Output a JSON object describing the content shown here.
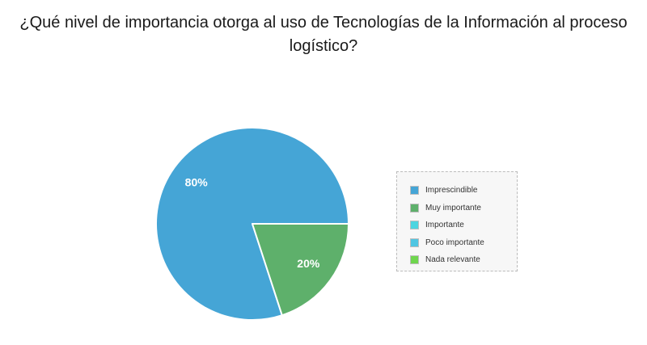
{
  "title_lines": [
    "¿Qué nivel de importancia otorga al uso de Tecnologías de la Información al proceso",
    "logístico?"
  ],
  "chart_data": {
    "type": "pie",
    "title": "¿Qué nivel de importancia otorga al uso de Tecnologías de la Información al proceso logístico?",
    "categories": [
      "Imprescindible",
      "Muy importante",
      "Importante",
      "Poco importante",
      "Nada relevante"
    ],
    "values": [
      80,
      20,
      0,
      0,
      0
    ],
    "unit": "%",
    "colors": [
      "#45a5d6",
      "#5eb06b",
      "#4dd5e0",
      "#4fc6e2",
      "#6fd64e"
    ],
    "data_labels": [
      "80%",
      "20%",
      "",
      "",
      ""
    ],
    "legend_position": "right"
  }
}
